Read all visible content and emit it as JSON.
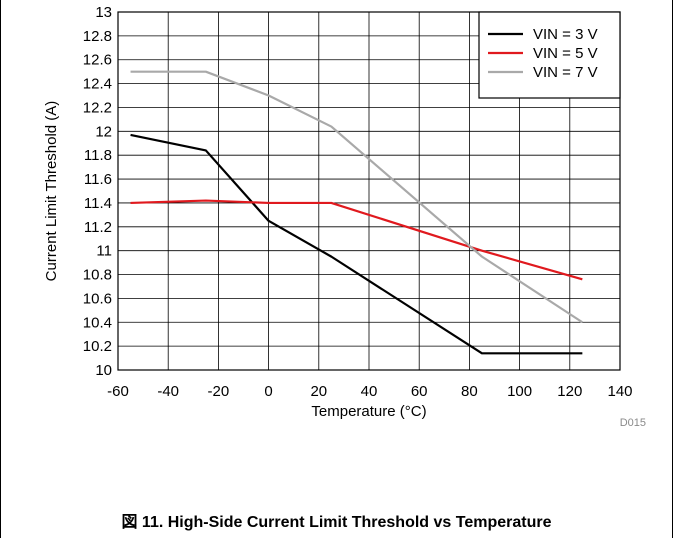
{
  "figure": {
    "caption": "図 11. High-Side Current Limit Threshold vs Temperature",
    "code": "D015"
  },
  "chart_data": {
    "type": "line",
    "xlabel": "Temperature (°C)",
    "ylabel": "Current Limit Threshold (A)",
    "xlim": [
      -60,
      140
    ],
    "ylim": [
      10,
      13
    ],
    "xticks": [
      -60,
      -40,
      -20,
      0,
      20,
      40,
      60,
      80,
      100,
      120,
      140
    ],
    "xtick_labels": [
      "-60",
      "-40",
      "-20",
      "0",
      "20",
      "40",
      "60",
      "80",
      "100",
      "120",
      "140"
    ],
    "yticks": [
      10,
      10.2,
      10.4,
      10.6,
      10.8,
      11,
      11.2,
      11.4,
      11.6,
      11.8,
      12,
      12.2,
      12.4,
      12.6,
      12.8,
      13
    ],
    "ytick_labels": [
      "10",
      "10.2",
      "10.4",
      "10.6",
      "10.8",
      "11",
      "11.2",
      "11.4",
      "11.6",
      "11.8",
      "12",
      "12.2",
      "12.4",
      "12.6",
      "12.8",
      "13"
    ],
    "grid": true,
    "legend_position": "top-right",
    "series": [
      {
        "name": "VIN = 3 V",
        "color": "#000000",
        "x": [
          -55,
          -25,
          0,
          25,
          85,
          125
        ],
        "y": [
          11.97,
          11.84,
          11.25,
          10.95,
          10.14,
          10.14
        ]
      },
      {
        "name": "VIN = 5 V",
        "color": "#e0191e",
        "x": [
          -55,
          -25,
          0,
          25,
          85,
          125
        ],
        "y": [
          11.4,
          11.42,
          11.4,
          11.4,
          11.0,
          10.76
        ]
      },
      {
        "name": "VIN = 7 V",
        "color": "#a9a9a9",
        "x": [
          -55,
          -25,
          0,
          25,
          85,
          125
        ],
        "y": [
          12.5,
          12.5,
          12.3,
          12.04,
          10.95,
          10.4
        ]
      }
    ]
  }
}
